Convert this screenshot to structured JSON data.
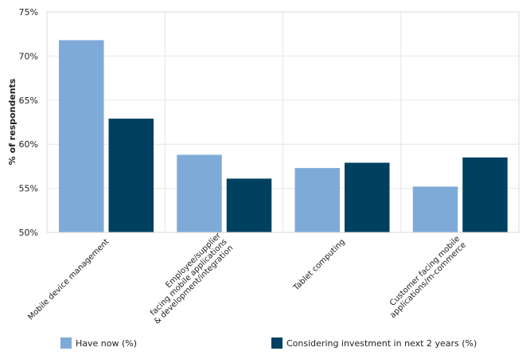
{
  "chart_data": {
    "type": "bar",
    "title": "",
    "xlabel": "",
    "ylabel": "% of respondents",
    "ylim": [
      50,
      75
    ],
    "yticks": [
      50,
      55,
      60,
      65,
      70,
      75
    ],
    "ytick_labels": [
      "50%",
      "55%",
      "60%",
      "65%",
      "70%",
      "75%"
    ],
    "grid": true,
    "legend_position": "bottom",
    "categories": [
      [
        "Mobile device management"
      ],
      [
        "Employee/supplier",
        "facing mobile applications",
        "& development/integration"
      ],
      [
        "Tablet computing"
      ],
      [
        "Customer facing mobile",
        "applications/m-commerce"
      ]
    ],
    "series": [
      {
        "name": "Have now (%)",
        "color": "#7eaad8",
        "values": [
          71.8,
          58.8,
          57.3,
          55.2
        ]
      },
      {
        "name": "Considering investment in next 2 years (%)",
        "color": "#004060",
        "values": [
          62.9,
          56.1,
          57.9,
          58.5
        ]
      }
    ]
  }
}
